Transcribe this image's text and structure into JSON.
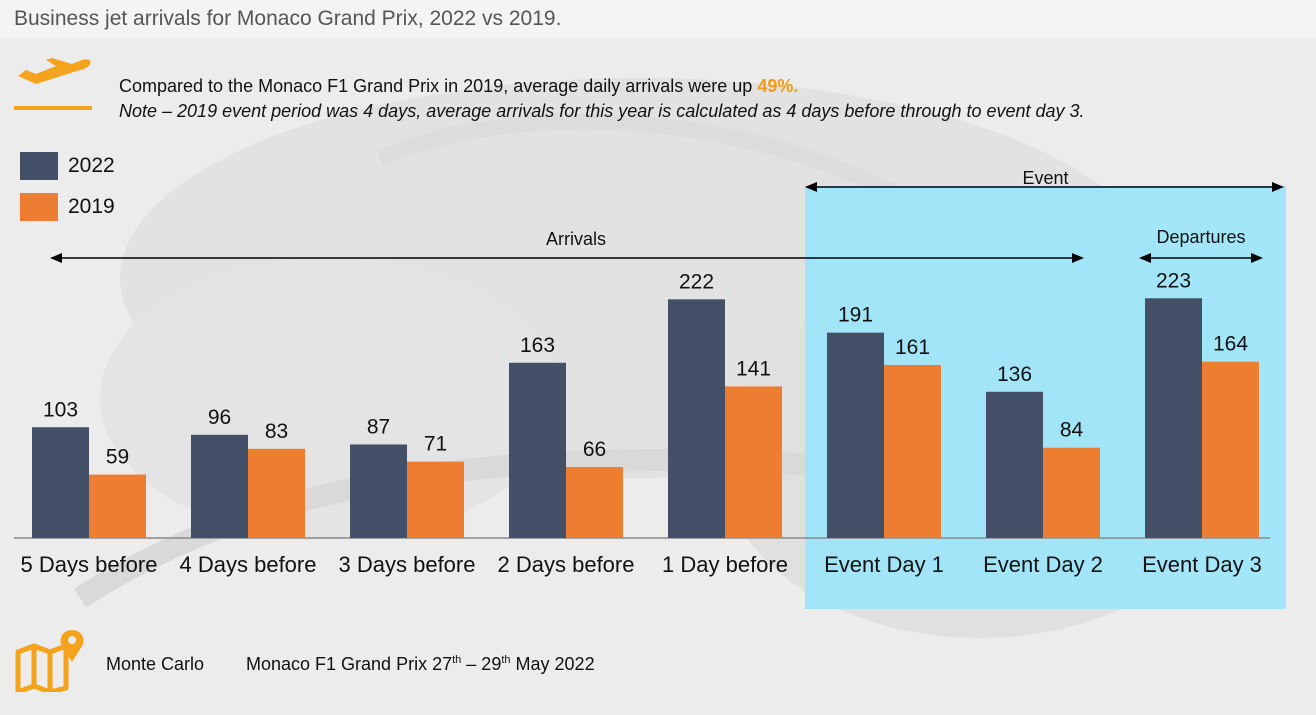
{
  "title": "Business jet arrivals for Monaco Grand Prix, 2022 vs 2019.",
  "headline": {
    "text": "Compared to the Monaco F1 Grand Prix in 2019, average daily arrivals were up ",
    "highlight": "49%."
  },
  "note": "Note – 2019 event period was 4 days, average arrivals for this year is calculated as 4 days before through to event day 3.",
  "icons": {
    "header": "airplane-departure-icon",
    "footer": "map-location-pin-icon"
  },
  "colors": {
    "series_2022": "#435068",
    "series_2019": "#ed7d31",
    "event_highlight": "#9be5fb",
    "accent": "#f5a21c"
  },
  "chart_data": {
    "type": "bar",
    "categories": [
      "5 Days before",
      "4 Days before",
      "3 Days before",
      "2 Days before",
      "1 Day before",
      "Event Day 1",
      "Event Day 2",
      "Event Day 3"
    ],
    "series": [
      {
        "name": "2022",
        "values": [
          103,
          96,
          87,
          163,
          222,
          191,
          136,
          223
        ]
      },
      {
        "name": "2019",
        "values": [
          59,
          83,
          71,
          66,
          141,
          161,
          84,
          164
        ]
      }
    ],
    "ylim": [
      0,
      240
    ],
    "grid": false,
    "legend": "top-left",
    "annotations": {
      "arrivals": "Arrivals",
      "event": "Event",
      "departures": "Departures"
    }
  },
  "footer": {
    "place": "Monte Carlo",
    "event_prefix": "Monaco F1 Grand Prix 27",
    "sup1": "th",
    "event_mid": " – 29",
    "sup2": "th",
    "event_suffix": " May 2022"
  }
}
